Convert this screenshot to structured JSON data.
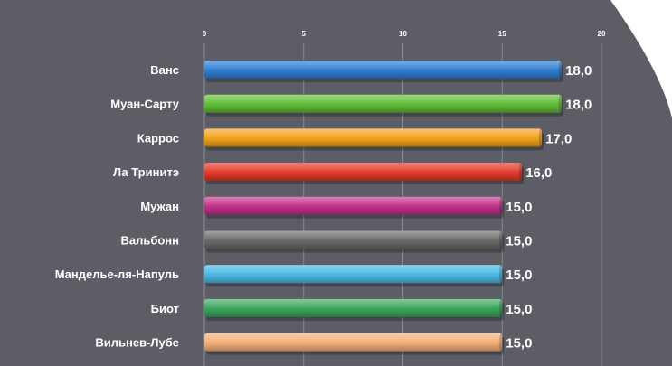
{
  "chart_data": {
    "type": "bar",
    "orientation": "horizontal",
    "categories": [
      "Ванс",
      "Муан-Сарту",
      "Каррос",
      "Ла Тринитэ",
      "Мужан",
      "Вальбонн",
      "Манделье-ля-Напуль",
      "Биот",
      "Вильнев-Лубе"
    ],
    "values": [
      18.0,
      18.0,
      17.0,
      16.0,
      15.0,
      15.0,
      15.0,
      15.0,
      15.0
    ],
    "value_labels": [
      "18,0",
      "18,0",
      "17,0",
      "16,0",
      "15,0",
      "15,0",
      "15,0",
      "15,0",
      "15,0"
    ],
    "bar_colors": [
      "#2f7fd0",
      "#5fbd33",
      "#f3a21b",
      "#e23a2b",
      "#c2308a",
      "#6a6a6a",
      "#4ab8e4",
      "#3aa55c",
      "#f4ae76"
    ],
    "xlim": [
      0,
      20
    ],
    "xticks": [
      0,
      5,
      10,
      15,
      20
    ],
    "xtick_labels": [
      "0",
      "5",
      "10",
      "15",
      "20"
    ],
    "grid": true,
    "xaxis_position": "top",
    "title": "",
    "xlabel": "",
    "ylabel": ""
  },
  "colors": {
    "background": "#5d5d66",
    "grid": "#8a8a94",
    "corner": "#ffffff",
    "text": "#ffffff"
  }
}
